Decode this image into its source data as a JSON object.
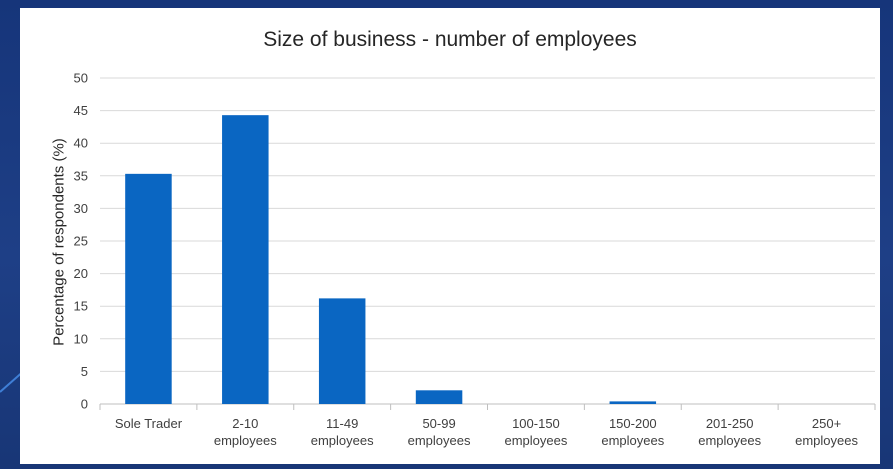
{
  "chart_data": {
    "type": "bar",
    "title": "Size of business - number of employees",
    "xlabel": "",
    "ylabel": "Percentage of respondents (%)",
    "ylim": [
      0,
      50
    ],
    "yticks": [
      0,
      5,
      10,
      15,
      20,
      25,
      30,
      35,
      40,
      45,
      50
    ],
    "grid": true,
    "legend": "none",
    "bar_color": "#0a66c2",
    "categories": [
      [
        "Sole Trader"
      ],
      [
        "2-10",
        "employees"
      ],
      [
        "11-49",
        "employees"
      ],
      [
        "50-99",
        "employees"
      ],
      [
        "100-150",
        "employees"
      ],
      [
        "150-200",
        "employees"
      ],
      [
        "201-250",
        "employees"
      ],
      [
        "250+",
        "employees"
      ]
    ],
    "values": [
      35.3,
      44.3,
      16.2,
      2.1,
      0,
      0.4,
      0,
      0
    ]
  }
}
